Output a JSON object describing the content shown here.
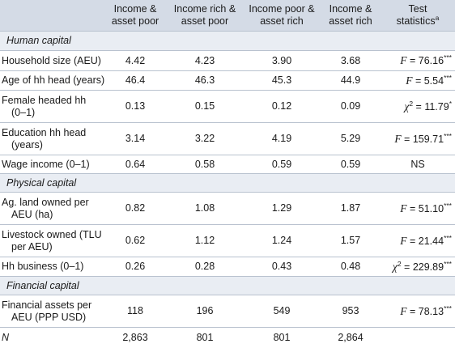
{
  "header": {
    "col1": [
      "Income &",
      "asset poor"
    ],
    "col2": [
      "Income rich &",
      "asset poor"
    ],
    "col3": [
      "Income poor &",
      "asset rich"
    ],
    "col4": [
      "Income &",
      "asset rich"
    ],
    "col5_line1": "Test",
    "col5_line2": "statistics",
    "col5_sup": "a"
  },
  "sections": {
    "human": "Human capital",
    "physical": "Physical capital",
    "financial": "Financial capital"
  },
  "rows": {
    "household_size": {
      "label": [
        "Household size (AEU)"
      ],
      "v": [
        "4.42",
        "4.23",
        "3.90",
        "3.68"
      ],
      "stat_sym": "F",
      "stat_val": " = 76.16",
      "stat_sig": "***"
    },
    "age_head": {
      "label": [
        "Age of hh head (years)"
      ],
      "v": [
        "46.4",
        "46.3",
        "45.3",
        "44.9"
      ],
      "stat_sym": "F",
      "stat_val": " = 5.54",
      "stat_sig": "***"
    },
    "female_head": {
      "label": [
        "Female headed hh",
        "(0–1)"
      ],
      "v": [
        "0.13",
        "0.15",
        "0.12",
        "0.09"
      ],
      "stat_sym": "χ",
      "stat_exp": "2",
      "stat_val": " = 11.79",
      "stat_sig": "*"
    },
    "education": {
      "label": [
        "Education hh head",
        "(years)"
      ],
      "v": [
        "3.14",
        "3.22",
        "4.19",
        "5.29"
      ],
      "stat_sym": "F",
      "stat_val": " = 159.71",
      "stat_sig": "***"
    },
    "wage": {
      "label": [
        "Wage income (0–1)"
      ],
      "v": [
        "0.64",
        "0.58",
        "0.59",
        "0.59"
      ],
      "stat_plain": "NS"
    },
    "land": {
      "label": [
        "Ag. land owned per",
        "AEU (ha)"
      ],
      "v": [
        "0.82",
        "1.08",
        "1.29",
        "1.87"
      ],
      "stat_sym": "F",
      "stat_val": " = 51.10",
      "stat_sig": "***"
    },
    "livestock": {
      "label": [
        "Livestock owned (TLU",
        "per AEU)"
      ],
      "v": [
        "0.62",
        "1.12",
        "1.24",
        "1.57"
      ],
      "stat_sym": "F",
      "stat_val": " = 21.44",
      "stat_sig": "***"
    },
    "business": {
      "label": [
        "Hh business (0–1)"
      ],
      "v": [
        "0.26",
        "0.28",
        "0.43",
        "0.48"
      ],
      "stat_sym": "χ",
      "stat_exp": "2",
      "stat_val": " = 229.89",
      "stat_sig": "***"
    },
    "financial_assets": {
      "label": [
        "Financial assets per",
        "AEU (PPP USD)"
      ],
      "v": [
        "118",
        "196",
        "549",
        "953"
      ],
      "stat_sym": "F",
      "stat_val": " = 78.13",
      "stat_sig": "***"
    },
    "n": {
      "label": [
        "N"
      ],
      "v": [
        "2,863",
        "801",
        "801",
        "2,864"
      ]
    }
  }
}
